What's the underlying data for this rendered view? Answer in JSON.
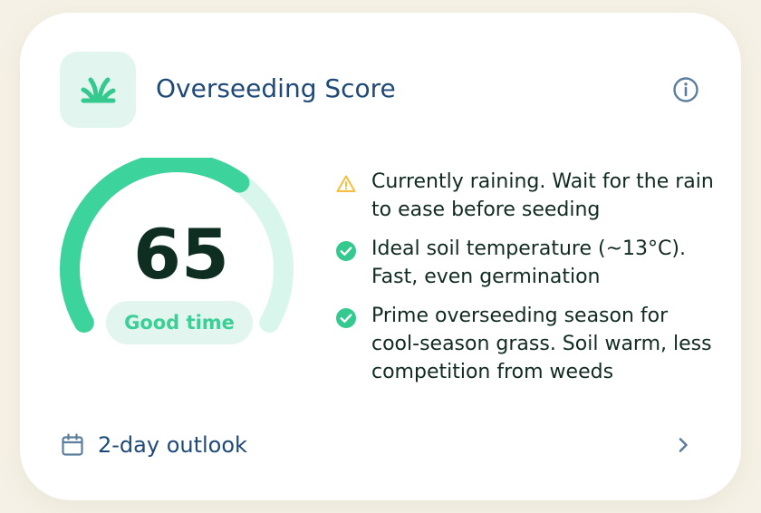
{
  "card": {
    "title": "Overseeding Score",
    "icon": "grass-sprout-icon",
    "info_icon": "info-icon"
  },
  "score": {
    "value": "65",
    "max": 100,
    "fraction": 0.65,
    "label": "Good time",
    "colors": {
      "fill": "#3dd39c",
      "track": "#d9f6ec",
      "label": "#3ccf98",
      "label_bg": "#e2f5ee",
      "value": "#0f2e22"
    }
  },
  "factors": [
    {
      "status": "warning",
      "icon": "warning-triangle-icon",
      "color": "#f5be3c",
      "text": "Currently raining. Wait for the rain to ease before seeding"
    },
    {
      "status": "good",
      "icon": "check-circle-icon",
      "color": "#34c98f",
      "text": "Ideal soil temperature (~13°C). Fast, even germination"
    },
    {
      "status": "good",
      "icon": "check-circle-icon",
      "color": "#34c98f",
      "text": "Prime overseeding season for cool-season grass. Soil warm, less competition from weeds"
    }
  ],
  "outlook": {
    "label": "2-day outlook",
    "icon": "calendar-icon",
    "action_icon": "chevron-right-icon"
  }
}
